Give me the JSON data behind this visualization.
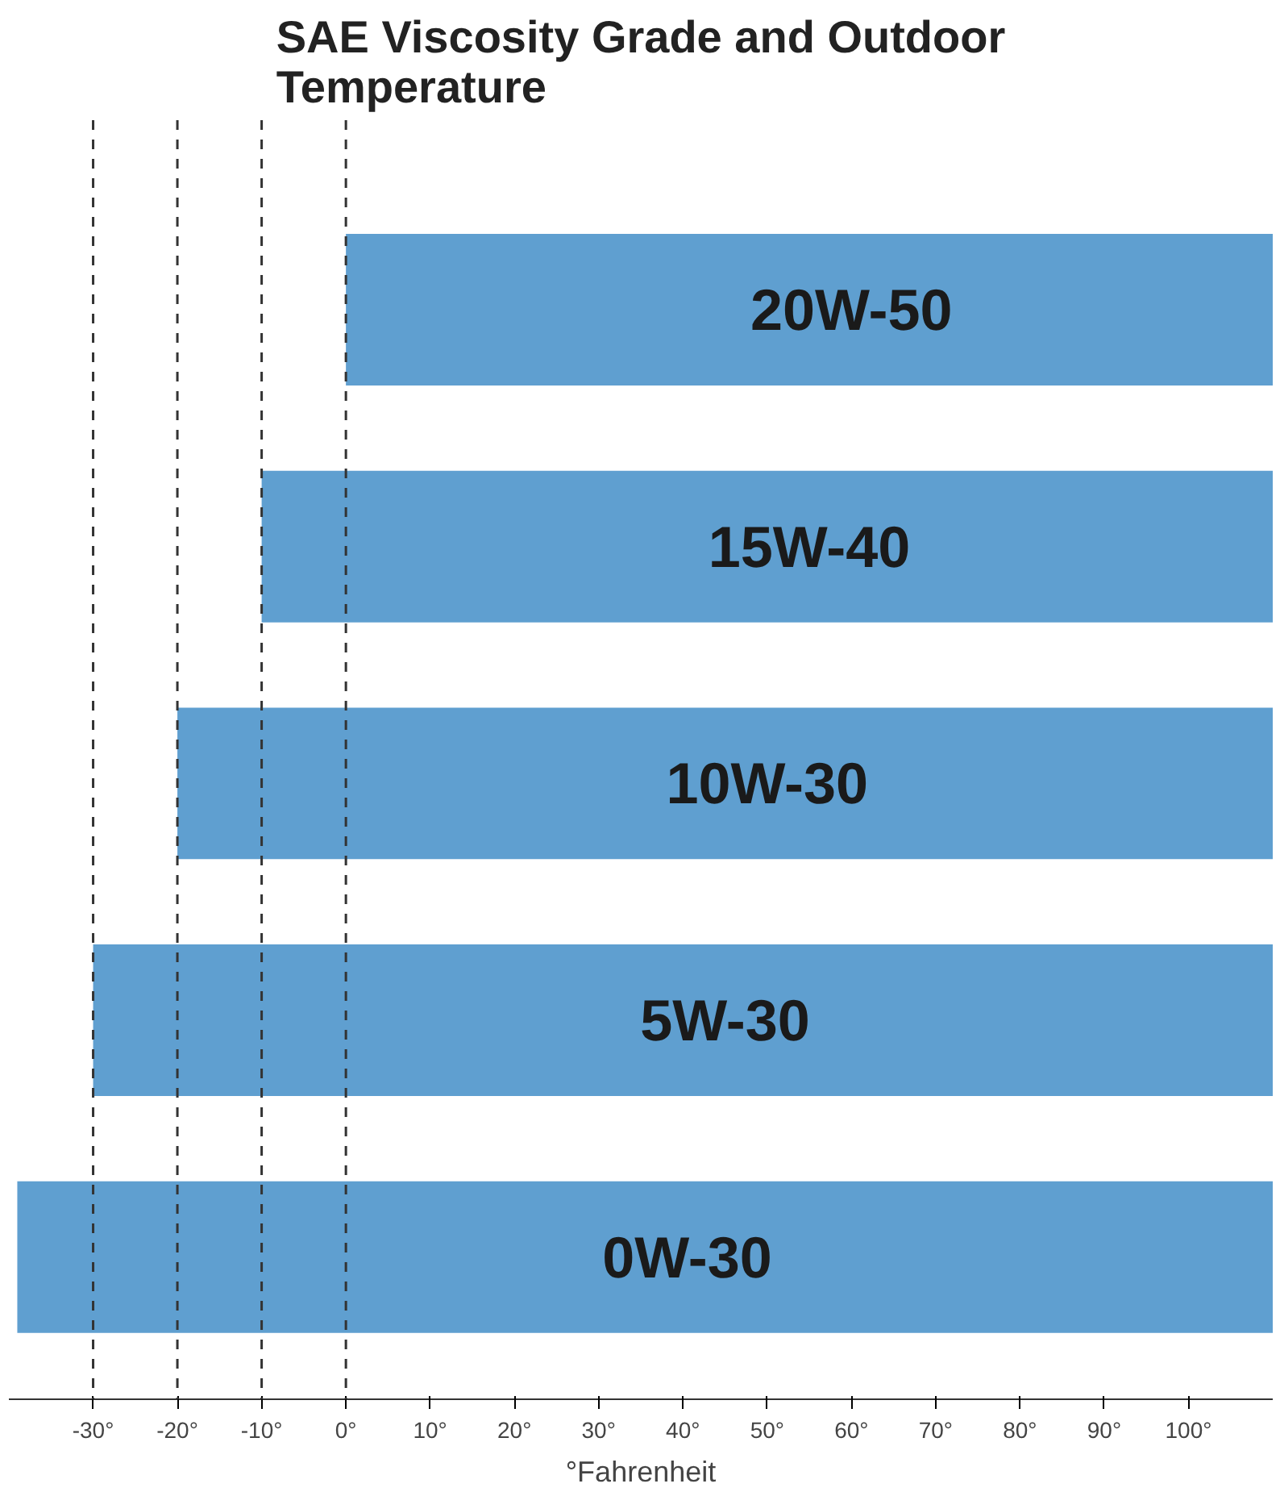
{
  "chart_data": {
    "type": "bar",
    "orientation": "horizontal",
    "title": "SAE Viscosity Grade and Outdoor\nTemperature",
    "xlabel": "°Fahrenheit",
    "categories": [
      "20W-50",
      "15W-40",
      "10W-30",
      "5W-30",
      "0W-30"
    ],
    "base": [
      0,
      -10,
      -20,
      -30,
      -39
    ],
    "values": [
      110,
      120,
      130,
      140,
      149
    ],
    "colors": [
      "#5f9fd0",
      "#5f9fd0",
      "#5f9fd0",
      "#5f9fd0",
      "#5f9fd0"
    ],
    "xlim": [
      -40,
      110
    ],
    "xticks": [
      {
        "value": -30,
        "label": "-30°"
      },
      {
        "value": -20,
        "label": "-20°"
      },
      {
        "value": -10,
        "label": "-10°"
      },
      {
        "value": 0,
        "label": "0°"
      },
      {
        "value": 10,
        "label": "10°"
      },
      {
        "value": 20,
        "label": "20°"
      },
      {
        "value": 30,
        "label": "30°"
      },
      {
        "value": 40,
        "label": "40°"
      },
      {
        "value": 50,
        "label": "50°"
      },
      {
        "value": 60,
        "label": "60°"
      },
      {
        "value": 70,
        "label": "70°"
      },
      {
        "value": 80,
        "label": "80°"
      },
      {
        "value": 90,
        "label": "90°"
      },
      {
        "value": 100,
        "label": "100°"
      }
    ],
    "ref_lines": [
      {
        "axis": "x",
        "value": -30,
        "line_style": "dashed"
      },
      {
        "axis": "x",
        "value": -20,
        "line_style": "dashed"
      },
      {
        "axis": "x",
        "value": -10,
        "line_style": "dashed"
      },
      {
        "axis": "x",
        "value": 0,
        "line_style": "dashed"
      }
    ],
    "tick_labels": "x",
    "grid": false
  }
}
